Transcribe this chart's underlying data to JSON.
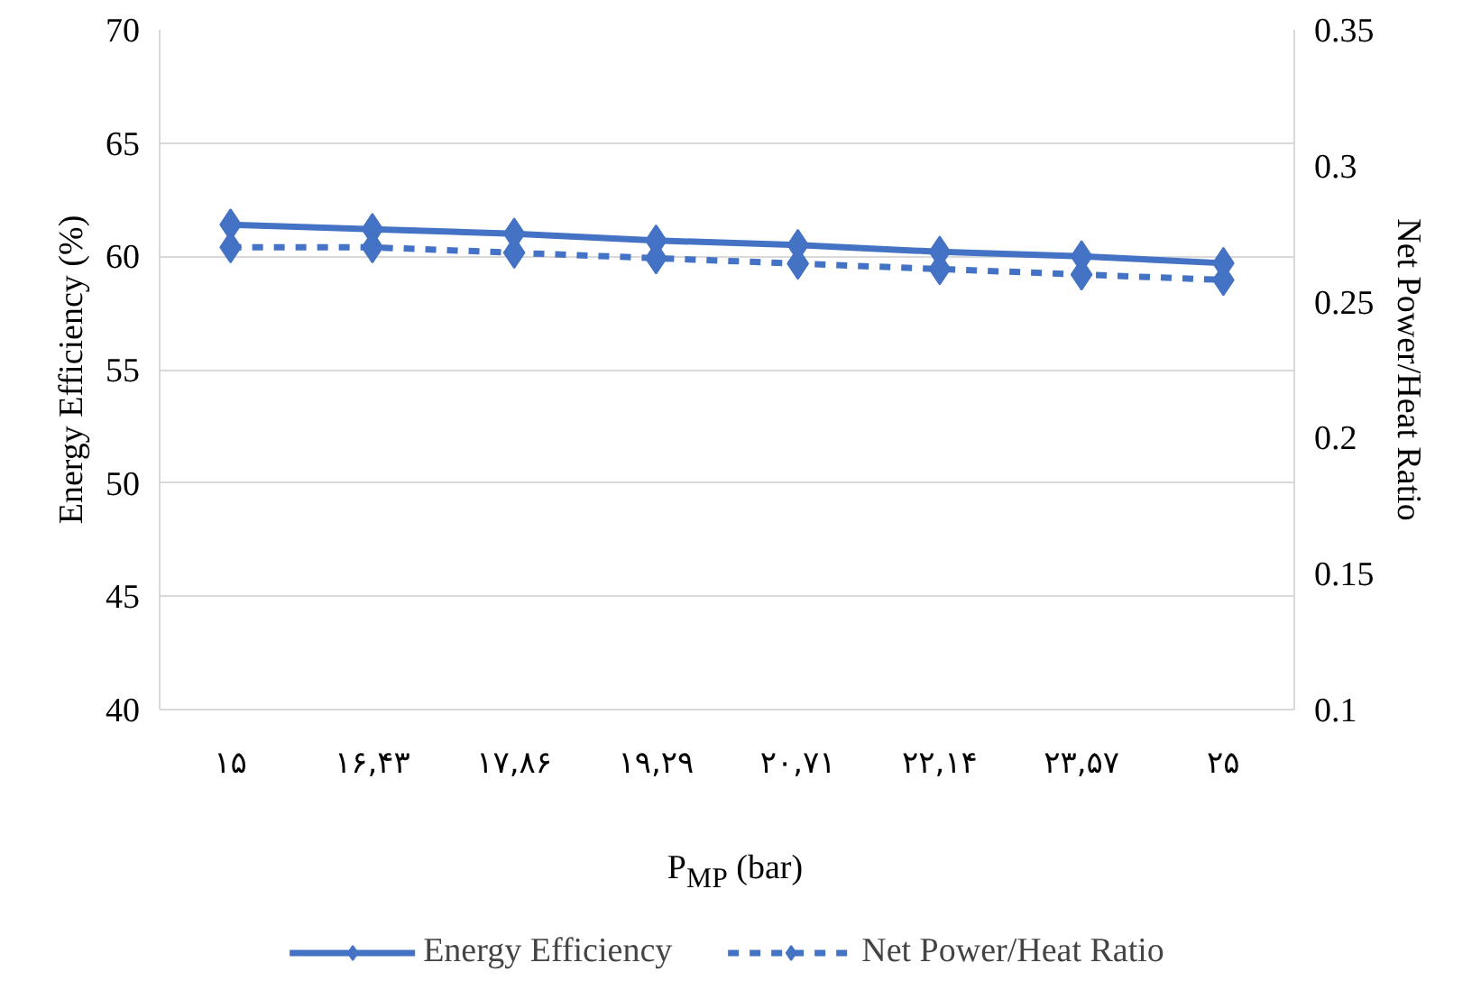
{
  "chart_data": {
    "type": "line",
    "xlabel": "P$_{MP}$ (bar)",
    "ylabel": "Energy Efficiency (%)",
    "y2label": "Net Power/Heat Ratio",
    "categories": [
      "۱۵",
      "۱۶,۴۳",
      "۱۷,۸۶",
      "۱۹,۲۹",
      "۲۰,۷۱",
      "۲۲,۱۴",
      "۲۳,۵۷",
      "۲۵"
    ],
    "series": [
      {
        "name": "Energy Efficiency",
        "color": "#4472c4",
        "values": [
          61.4,
          61.2,
          61.0,
          60.7,
          60.5,
          60.2,
          60.0,
          59.7
        ],
        "line_style": "solid"
      },
      {
        "name": "Net Power/Heat Ratio",
        "color": "#4472c4",
        "axis": "y2",
        "values": [
          0.27,
          0.27,
          0.268,
          0.266,
          0.264,
          0.262,
          0.26,
          0.258
        ],
        "line_style": "dashed"
      }
    ],
    "ylim": [
      40,
      70
    ],
    "yticks": [
      40,
      45,
      50,
      55,
      60,
      65,
      70
    ],
    "y2lim": [
      0.1,
      0.35
    ],
    "y2ticks": [
      {
        "value": 0.1,
        "label": "0.1"
      },
      {
        "value": 0.15,
        "label": "0.15"
      },
      {
        "value": 0.2,
        "label": "0.2"
      },
      {
        "value": 0.25,
        "label": "0.25"
      },
      {
        "value": 0.3,
        "label": "0.3"
      },
      {
        "value": 0.35,
        "label": "0.35"
      }
    ],
    "marker": "diamond",
    "grid": "y",
    "legend": "bottom"
  }
}
